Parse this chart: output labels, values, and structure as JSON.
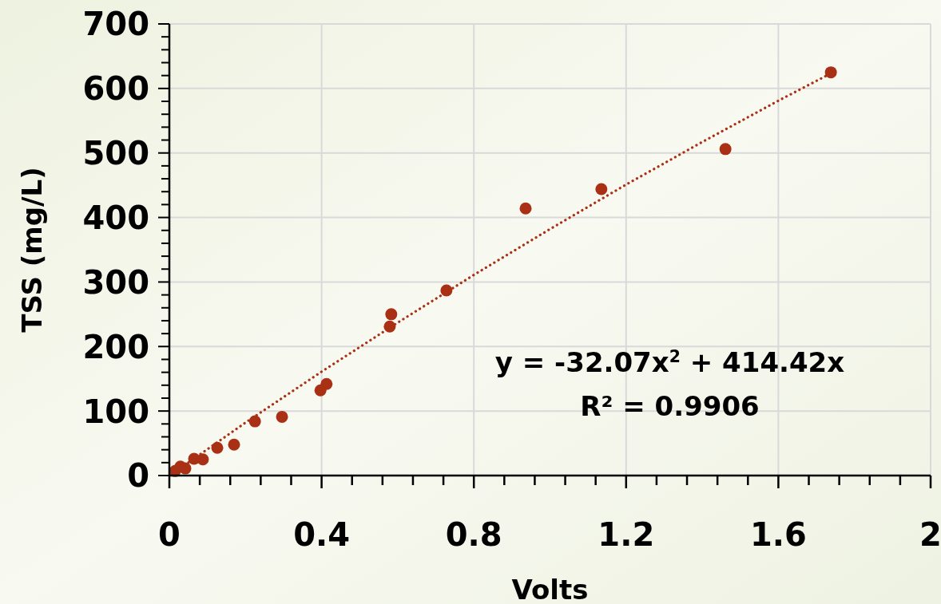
{
  "chart_data": {
    "type": "scatter",
    "xlabel": "Volts",
    "ylabel": "TSS (mg/L)",
    "xlim": [
      0,
      2
    ],
    "ylim": [
      0,
      700
    ],
    "xticks": [
      0,
      {
        "value": 0.08,
        "label": null
      },
      {
        "value": 0.16,
        "label": null
      },
      {
        "value": 0.24,
        "label": null
      },
      {
        "value": 0.32,
        "label": null
      },
      0.4,
      {
        "value": 0.48,
        "label": null
      },
      {
        "value": 0.56,
        "label": null
      },
      {
        "value": 0.64,
        "label": null
      },
      {
        "value": 0.72,
        "label": null
      },
      0.8,
      {
        "value": 0.88,
        "label": null
      },
      {
        "value": 0.96,
        "label": null
      },
      {
        "value": 1.04,
        "label": null
      },
      {
        "value": 1.12,
        "label": null
      },
      1.2,
      {
        "value": 1.28,
        "label": null
      },
      {
        "value": 1.36,
        "label": null
      },
      {
        "value": 1.44,
        "label": null
      },
      {
        "value": 1.52,
        "label": null
      },
      1.6,
      {
        "value": 1.68,
        "label": null
      },
      {
        "value": 1.76,
        "label": null
      },
      {
        "value": 1.84,
        "label": null
      },
      {
        "value": 1.92,
        "label": null
      },
      2
    ],
    "yticks": [
      0,
      {
        "value": 20,
        "label": null
      },
      {
        "value": 40,
        "label": null
      },
      {
        "value": 60,
        "label": null
      },
      {
        "value": 80,
        "label": null
      },
      100,
      {
        "value": 120,
        "label": null
      },
      {
        "value": 140,
        "label": null
      },
      {
        "value": 160,
        "label": null
      },
      {
        "value": 180,
        "label": null
      },
      200,
      {
        "value": 220,
        "label": null
      },
      {
        "value": 240,
        "label": null
      },
      {
        "value": 260,
        "label": null
      },
      {
        "value": 280,
        "label": null
      },
      300,
      {
        "value": 320,
        "label": null
      },
      {
        "value": 340,
        "label": null
      },
      {
        "value": 360,
        "label": null
      },
      {
        "value": 380,
        "label": null
      },
      400,
      {
        "value": 420,
        "label": null
      },
      {
        "value": 440,
        "label": null
      },
      {
        "value": 460,
        "label": null
      },
      {
        "value": 480,
        "label": null
      },
      500,
      {
        "value": 520,
        "label": null
      },
      {
        "value": 540,
        "label": null
      },
      {
        "value": 560,
        "label": null
      },
      {
        "value": 580,
        "label": null
      },
      600,
      {
        "value": 620,
        "label": null
      },
      {
        "value": 640,
        "label": null
      },
      {
        "value": 660,
        "label": null
      },
      {
        "value": 680,
        "label": null
      },
      700
    ],
    "grid": true,
    "marker": "circle",
    "annotations": [
      "y = -32.07x$^{2}$ + 414.42x",
      "R² = 0.9906"
    ],
    "series": [
      {
        "color": "#a93014",
        "x": [
          0.015,
          0.029,
          0.042,
          0.065,
          0.088,
          0.126,
          0.17,
          0.225,
          0.296,
          0.397,
          0.413,
          0.579,
          0.583,
          0.728,
          0.936,
          1.135,
          1.461,
          1.738
        ],
        "values": [
          7,
          14,
          11,
          26,
          25,
          43,
          48,
          84,
          91,
          132,
          142,
          231,
          250,
          287,
          414,
          444,
          506,
          625
        ]
      },
      {
        "type": "line",
        "line_style": "dotted",
        "marker": "none",
        "color": "#a93014",
        "x": [
          0.04,
          0.2,
          0.4,
          0.6,
          0.8,
          1.0,
          1.2,
          1.4,
          1.6,
          1.74
        ],
        "values": [
          16,
          82,
          161,
          237,
          311,
          382,
          451,
          517,
          581,
          624
        ]
      }
    ]
  }
}
